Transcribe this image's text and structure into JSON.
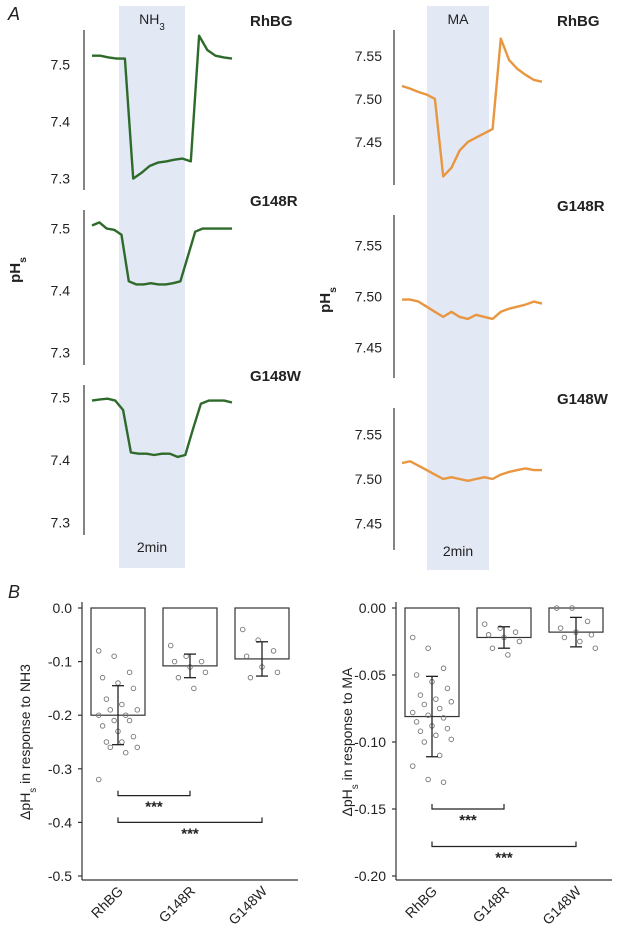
{
  "figure": {
    "panel_a_label": "A",
    "panel_b_label": "B"
  },
  "chart_data": [
    {
      "type": "line",
      "panel": "A-left",
      "stimulus_label": "NH3",
      "ylabel": "pHs",
      "timescale_label": "2min",
      "series_color": "#2e6b2a",
      "shade_color": "#e3e8f5",
      "traces": [
        {
          "name": "RhBG",
          "yticks": [
            "7.5",
            "7.4",
            "7.3"
          ],
          "ylim": [
            7.28,
            7.56
          ],
          "values": [
            7.515,
            7.515,
            7.512,
            7.51,
            7.51,
            7.3,
            7.31,
            7.322,
            7.328,
            7.33,
            7.333,
            7.335,
            7.33,
            7.55,
            7.525,
            7.515,
            7.512,
            7.51
          ]
        },
        {
          "name": "G148R",
          "yticks": [
            "7.5",
            "7.4",
            "7.3"
          ],
          "ylim": [
            7.28,
            7.53
          ],
          "values": [
            7.505,
            7.51,
            7.5,
            7.498,
            7.49,
            7.415,
            7.41,
            7.41,
            7.412,
            7.41,
            7.41,
            7.412,
            7.415,
            7.455,
            7.495,
            7.5,
            7.5,
            7.5,
            7.5,
            7.5
          ]
        },
        {
          "name": "G148W",
          "yticks": [
            "7.5",
            "7.4",
            "7.3"
          ],
          "ylim": [
            7.28,
            7.52
          ],
          "values": [
            7.495,
            7.497,
            7.498,
            7.495,
            7.48,
            7.412,
            7.41,
            7.41,
            7.408,
            7.41,
            7.41,
            7.405,
            7.408,
            7.45,
            7.49,
            7.495,
            7.495,
            7.495,
            7.492
          ]
        }
      ]
    },
    {
      "type": "line",
      "panel": "A-right",
      "stimulus_label": "MA",
      "ylabel": "pHs",
      "timescale_label": "2min",
      "series_color": "#e8963f",
      "shade_color": "#e3e8f5",
      "traces": [
        {
          "name": "RhBG",
          "yticks": [
            "7.55",
            "7.50",
            "7.45"
          ],
          "ylim": [
            7.4,
            7.58
          ],
          "values": [
            7.515,
            7.512,
            7.508,
            7.505,
            7.5,
            7.41,
            7.42,
            7.44,
            7.45,
            7.455,
            7.46,
            7.465,
            7.57,
            7.545,
            7.535,
            7.528,
            7.522,
            7.52
          ]
        },
        {
          "name": "G148R",
          "yticks": [
            "7.55",
            "7.50",
            "7.45"
          ],
          "ylim": [
            7.42,
            7.58
          ],
          "values": [
            7.497,
            7.497,
            7.495,
            7.49,
            7.485,
            7.48,
            7.485,
            7.48,
            7.478,
            7.482,
            7.48,
            7.478,
            7.485,
            7.488,
            7.49,
            7.492,
            7.495,
            7.493
          ]
        },
        {
          "name": "G148W",
          "yticks": [
            "7.55",
            "7.50",
            "7.45"
          ],
          "ylim": [
            7.42,
            7.58
          ],
          "values": [
            7.518,
            7.52,
            7.515,
            7.51,
            7.505,
            7.5,
            7.502,
            7.5,
            7.498,
            7.5,
            7.502,
            7.5,
            7.505,
            7.508,
            7.51,
            7.512,
            7.51,
            7.51
          ]
        }
      ]
    },
    {
      "type": "bar",
      "panel": "B-left",
      "ylabel": "ΔpHs in response to NH3",
      "categories": [
        "RhBG",
        "G148R",
        "G148W"
      ],
      "values": [
        -0.2,
        -0.108,
        -0.095
      ],
      "errors": [
        0.055,
        0.022,
        0.032
      ],
      "ylim": [
        -0.5,
        0.0
      ],
      "yticks": [
        "0.0",
        "-0.1",
        "-0.2",
        "-0.3",
        "-0.4",
        "-0.5"
      ],
      "points": [
        [
          -0.08,
          -0.09,
          -0.12,
          -0.13,
          -0.14,
          -0.15,
          -0.17,
          -0.18,
          -0.19,
          -0.19,
          -0.2,
          -0.2,
          -0.21,
          -0.21,
          -0.22,
          -0.23,
          -0.24,
          -0.25,
          -0.25,
          -0.26,
          -0.26,
          -0.27,
          -0.32
        ],
        [
          -0.07,
          -0.09,
          -0.1,
          -0.1,
          -0.11,
          -0.12,
          -0.13,
          -0.15
        ],
        [
          -0.04,
          -0.06,
          -0.08,
          -0.09,
          -0.11,
          -0.12,
          -0.13
        ]
      ],
      "significance": [
        {
          "from": 0,
          "to": 1,
          "label": "***",
          "y": -0.35
        },
        {
          "from": 0,
          "to": 2,
          "label": "***",
          "y": -0.4
        }
      ]
    },
    {
      "type": "bar",
      "panel": "B-right",
      "ylabel": "ΔpHs in response to MA",
      "categories": [
        "RhBG",
        "G148R",
        "G148W"
      ],
      "values": [
        -0.081,
        -0.022,
        -0.018
      ],
      "errors": [
        0.03,
        0.008,
        0.011
      ],
      "ylim": [
        -0.2,
        0.0
      ],
      "yticks": [
        "0.00",
        "-0.05",
        "-0.10",
        "-0.15",
        "-0.20"
      ],
      "points": [
        [
          -0.022,
          -0.03,
          -0.045,
          -0.05,
          -0.055,
          -0.06,
          -0.065,
          -0.068,
          -0.07,
          -0.072,
          -0.075,
          -0.078,
          -0.08,
          -0.082,
          -0.085,
          -0.088,
          -0.09,
          -0.092,
          -0.095,
          -0.098,
          -0.1,
          -0.11,
          -0.118,
          -0.128,
          -0.13
        ],
        [
          -0.012,
          -0.015,
          -0.018,
          -0.02,
          -0.022,
          -0.025,
          -0.03,
          -0.035
        ],
        [
          -0.0,
          -0.0,
          -0.01,
          -0.015,
          -0.018,
          -0.02,
          -0.022,
          -0.025,
          -0.03
        ]
      ],
      "significance": [
        {
          "from": 0,
          "to": 1,
          "label": "***",
          "y": -0.15
        },
        {
          "from": 0,
          "to": 2,
          "label": "***",
          "y": -0.178
        }
      ]
    }
  ]
}
